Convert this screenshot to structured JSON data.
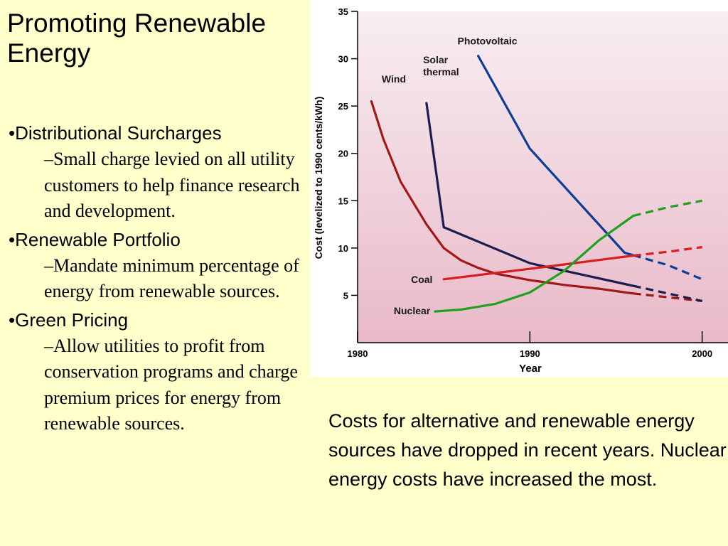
{
  "slide": {
    "title": "Promoting Renewable Energy",
    "bullets": [
      {
        "label": "•Distributional Surcharges",
        "sub": "–Small charge levied on all utility customers to help finance research and development."
      },
      {
        "label": "•Renewable Portfolio",
        "sub": "–Mandate minimum percentage of energy from renewable sources."
      },
      {
        "label": "•Green Pricing",
        "sub": "–Allow utilities to profit from conservation programs and charge premium prices for energy from renewable sources."
      }
    ],
    "caption": "Costs for alternative and renewable energy sources have dropped in recent years.  Nuclear energy costs have increased the most."
  },
  "colors": {
    "background": "#ffffcc",
    "plot_top": "#f8eef2",
    "plot_bottom": "#e9b9c8",
    "wind": "#a01818",
    "solar_thermal": "#1c1c50",
    "photovoltaic": "#0c3e96",
    "coal": "#d81e1e",
    "nuclear": "#1ea01e"
  },
  "chart_data": {
    "type": "line",
    "xlabel": "Year",
    "ylabel": "Cost (levelized to 1990 cents/kWh)",
    "xlim": [
      1980,
      2001.5
    ],
    "ylim": [
      0,
      35
    ],
    "xticks": [
      1980,
      1990,
      2000
    ],
    "yticks": [
      5,
      10,
      15,
      20,
      25,
      30,
      35
    ],
    "grid": false,
    "series": [
      {
        "name": "Wind",
        "color_key": "wind",
        "x": [
          1980.8,
          1981.5,
          1982.5,
          1984,
          1985,
          1986,
          1987,
          1988,
          1990,
          1992,
          1994,
          1996,
          1998,
          2000
        ],
        "y": [
          25.5,
          21.5,
          17,
          12.5,
          10,
          8.7,
          7.9,
          7.3,
          6.6,
          6.1,
          5.7,
          5.2,
          4.8,
          4.4
        ],
        "projected_from": 1996
      },
      {
        "name": "Solar thermal",
        "color_key": "solar_thermal",
        "x": [
          1984,
          1985,
          1990,
          1996,
          2000
        ],
        "y": [
          25.3,
          12.2,
          8.4,
          6.0,
          4.4
        ],
        "projected_from": 1996
      },
      {
        "name": "Photovoltaic",
        "color_key": "photovoltaic",
        "x": [
          1987,
          1990,
          1995.5,
          1998,
          2000
        ],
        "y": [
          30.3,
          20.5,
          9.5,
          8.2,
          6.7
        ],
        "projected_from": 1996
      },
      {
        "name": "Coal",
        "color_key": "coal",
        "x": [
          1985,
          1990,
          1996,
          1998,
          2000
        ],
        "y": [
          6.7,
          7.8,
          9.2,
          9.6,
          10.1
        ],
        "projected_from": 1996
      },
      {
        "name": "Nuclear",
        "color_key": "nuclear",
        "x": [
          1984.5,
          1986,
          1988,
          1990,
          1992,
          1994,
          1996,
          1998,
          2000
        ],
        "y": [
          3.3,
          3.5,
          4.1,
          5.3,
          7.6,
          10.8,
          13.4,
          14.3,
          15.0
        ],
        "projected_from": 1996
      }
    ],
    "label_positions": [
      {
        "series": "Wind",
        "at": [
          1981.4,
          27.5
        ]
      },
      {
        "series": "Solar thermal",
        "at": [
          1983.8,
          29.5
        ],
        "lines": [
          "Solar",
          "thermal"
        ]
      },
      {
        "series": "Photovoltaic",
        "at": [
          1985.8,
          31.5
        ]
      },
      {
        "series": "Coal",
        "at": [
          1983.1,
          6.3
        ]
      },
      {
        "series": "Nuclear",
        "at": [
          1982.1,
          3.0
        ]
      }
    ]
  }
}
